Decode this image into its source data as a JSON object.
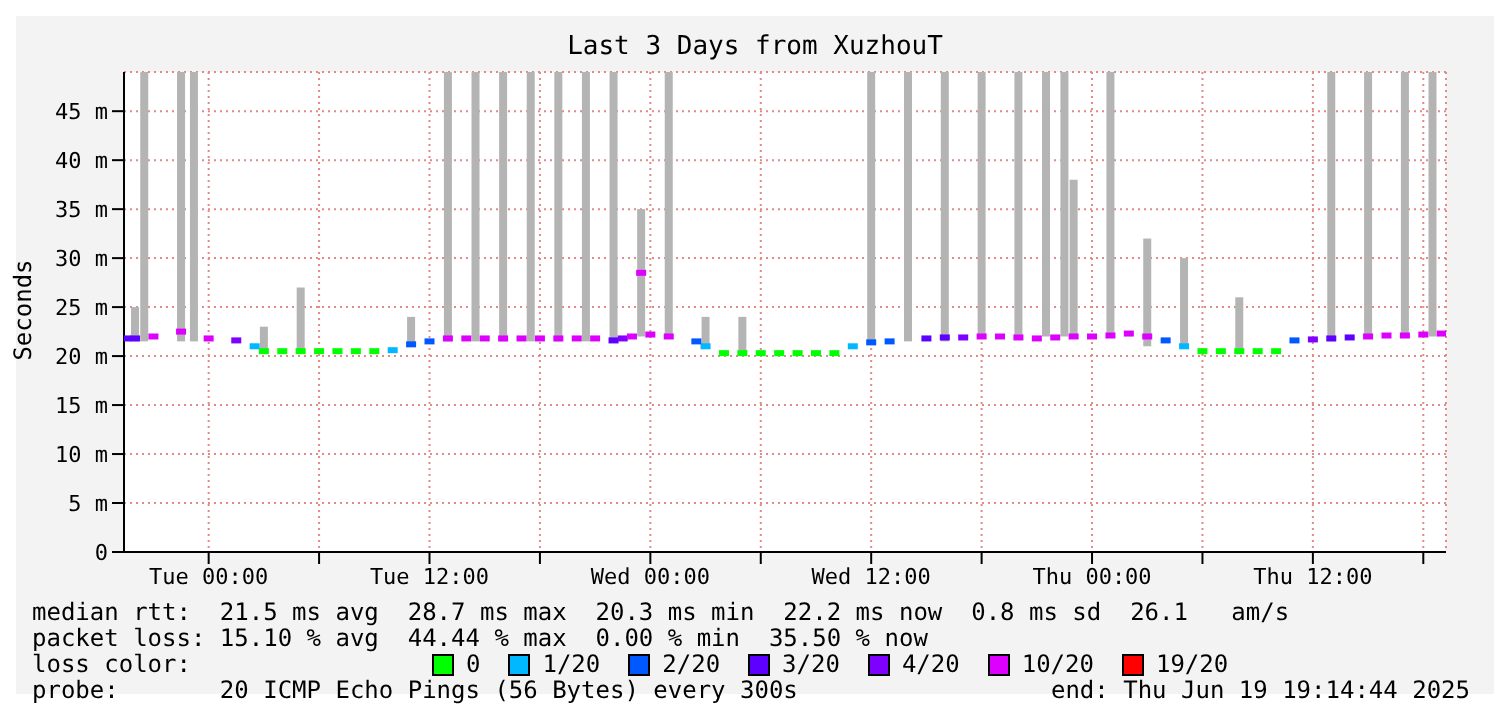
{
  "chart_data": {
    "type": "scatter",
    "title": "Last 3 Days from XuzhouT",
    "ylabel": "Seconds",
    "legend_title": "loss color:",
    "legend": "bottom",
    "marker": "square",
    "grid": true,
    "xlim": [
      "2025-06-16T19:24",
      "2025-06-19T19:14"
    ],
    "xticks": [
      {
        "value": "2025-06-17T00:00",
        "label": "Tue 00:00"
      },
      {
        "value": "2025-06-17T06:00",
        "label": null
      },
      {
        "value": "2025-06-17T12:00",
        "label": "Tue 12:00"
      },
      {
        "value": "2025-06-17T18:00",
        "label": null
      },
      {
        "value": "2025-06-18T00:00",
        "label": "Wed 00:00"
      },
      {
        "value": "2025-06-18T06:00",
        "label": null
      },
      {
        "value": "2025-06-18T12:00",
        "label": "Wed 12:00"
      },
      {
        "value": "2025-06-18T18:00",
        "label": null
      },
      {
        "value": "2025-06-19T00:00",
        "label": "Thu 00:00"
      },
      {
        "value": "2025-06-19T06:00",
        "label": null
      },
      {
        "value": "2025-06-19T12:00",
        "label": "Thu 12:00"
      },
      {
        "value": "2025-06-19T18:00",
        "label": null
      }
    ],
    "ylim": [
      0,
      49
    ],
    "yticks": [
      {
        "value": 0,
        "label": "0"
      },
      {
        "value": 5,
        "label": "5 m"
      },
      {
        "value": 10,
        "label": "10 m"
      },
      {
        "value": 15,
        "label": "15 m"
      },
      {
        "value": 20,
        "label": "20 m"
      },
      {
        "value": 25,
        "label": "25 m"
      },
      {
        "value": 30,
        "label": "30 m"
      },
      {
        "value": 35,
        "label": "35 m"
      },
      {
        "value": 40,
        "label": "40 m"
      },
      {
        "value": 45,
        "label": "45 m"
      }
    ],
    "series": [
      {
        "type": "bar",
        "color": "#b4b4b4",
        "x": [
          "2025-06-16T20:00",
          "2025-06-16T20:30",
          "2025-06-16T22:30",
          "2025-06-16T23:12",
          "2025-06-17T03:00",
          "2025-06-17T05:00",
          "2025-06-17T11:00",
          "2025-06-17T13:00",
          "2025-06-17T14:30",
          "2025-06-17T16:00",
          "2025-06-17T17:30",
          "2025-06-17T19:00",
          "2025-06-17T20:30",
          "2025-06-17T22:00",
          "2025-06-17T23:30",
          "2025-06-18T01:00",
          "2025-06-18T03:00",
          "2025-06-18T05:00",
          "2025-06-18T12:00",
          "2025-06-18T14:00",
          "2025-06-18T16:00",
          "2025-06-18T18:00",
          "2025-06-18T20:00",
          "2025-06-18T21:30",
          "2025-06-18T22:30",
          "2025-06-18T23:00",
          "2025-06-19T01:00",
          "2025-06-19T03:00",
          "2025-06-19T05:00",
          "2025-06-19T08:00",
          "2025-06-19T13:00",
          "2025-06-19T15:00",
          "2025-06-19T17:00",
          "2025-06-19T18:30"
        ],
        "base": [
          21.5,
          21.5,
          21.5,
          21.5,
          20.5,
          20.5,
          21,
          21.5,
          21.5,
          21.5,
          21.5,
          21.5,
          21.5,
          21.5,
          22,
          22,
          21,
          20.3,
          21.5,
          21.5,
          21.5,
          22,
          22,
          22,
          22,
          22,
          22,
          21,
          21,
          20.5,
          21.5,
          22,
          22,
          22
        ],
        "values": [
          3.5,
          27.5,
          27.5,
          27.5,
          2.5,
          6.5,
          3,
          27.5,
          27.5,
          27.5,
          27.5,
          27.5,
          27.5,
          27.5,
          13,
          27,
          3,
          3.7,
          27.5,
          27.5,
          27.5,
          27,
          27,
          27,
          27,
          16,
          27,
          11,
          9,
          5.5,
          27.5,
          27,
          27,
          27
        ]
      },
      {
        "name": "0",
        "color": "#00ff00",
        "x": [
          "2025-06-17T03:00",
          "2025-06-17T04:00",
          "2025-06-17T05:00",
          "2025-06-17T06:00",
          "2025-06-17T07:00",
          "2025-06-17T08:00",
          "2025-06-17T09:00",
          "2025-06-18T04:00",
          "2025-06-18T05:00",
          "2025-06-18T06:00",
          "2025-06-18T07:00",
          "2025-06-18T08:00",
          "2025-06-18T09:00",
          "2025-06-18T10:00",
          "2025-06-19T06:00",
          "2025-06-19T07:00",
          "2025-06-19T08:00",
          "2025-06-19T09:00",
          "2025-06-19T10:00"
        ],
        "values": [
          20.5,
          20.5,
          20.5,
          20.5,
          20.5,
          20.5,
          20.5,
          20.3,
          20.3,
          20.3,
          20.3,
          20.3,
          20.3,
          20.3,
          20.5,
          20.5,
          20.5,
          20.5,
          20.5
        ]
      },
      {
        "name": "1/20",
        "color": "#00b8ff",
        "x": [
          "2025-06-17T02:30",
          "2025-06-17T10:00",
          "2025-06-18T03:00",
          "2025-06-18T11:00",
          "2025-06-19T05:00"
        ],
        "values": [
          21,
          20.6,
          21,
          21,
          21
        ]
      },
      {
        "name": "2/20",
        "color": "#0059ff",
        "x": [
          "2025-06-17T11:00",
          "2025-06-17T12:00",
          "2025-06-18T02:30",
          "2025-06-18T12:00",
          "2025-06-18T13:00",
          "2025-06-19T04:00",
          "2025-06-19T11:00"
        ],
        "values": [
          21.2,
          21.5,
          21.5,
          21.4,
          21.5,
          21.6,
          21.6
        ]
      },
      {
        "name": "3/20",
        "color": "#5e00ff",
        "x": [
          "2025-06-16T19:30",
          "2025-06-16T20:00",
          "2025-06-17T22:00",
          "2025-06-18T15:00",
          "2025-06-18T16:00",
          "2025-06-19T13:00",
          "2025-06-19T14:00"
        ],
        "values": [
          21.8,
          21.8,
          21.6,
          21.8,
          21.9,
          21.8,
          21.9
        ]
      },
      {
        "name": "4/20",
        "color": "#7e00ff",
        "x": [
          "2025-06-17T01:30",
          "2025-06-17T22:30",
          "2025-06-18T17:00",
          "2025-06-19T12:00"
        ],
        "values": [
          21.6,
          21.8,
          21.9,
          21.7
        ]
      },
      {
        "name": "10/20",
        "color": "#dd00ff",
        "x": [
          "2025-06-16T21:00",
          "2025-06-16T22:30",
          "2025-06-17T00:00",
          "2025-06-17T13:00",
          "2025-06-17T14:00",
          "2025-06-17T15:00",
          "2025-06-17T16:00",
          "2025-06-17T17:00",
          "2025-06-17T18:00",
          "2025-06-17T19:00",
          "2025-06-17T20:00",
          "2025-06-17T21:00",
          "2025-06-17T23:00",
          "2025-06-17T23:30",
          "2025-06-18T00:00",
          "2025-06-18T01:00",
          "2025-06-18T18:00",
          "2025-06-18T19:00",
          "2025-06-18T20:00",
          "2025-06-18T21:00",
          "2025-06-18T22:00",
          "2025-06-18T23:00",
          "2025-06-19T00:00",
          "2025-06-19T01:00",
          "2025-06-19T02:00",
          "2025-06-19T03:00",
          "2025-06-19T15:00",
          "2025-06-19T16:00",
          "2025-06-19T17:00",
          "2025-06-19T18:00",
          "2025-06-19T19:00"
        ],
        "values": [
          22,
          22.5,
          21.8,
          21.8,
          21.8,
          21.8,
          21.8,
          21.8,
          21.8,
          21.8,
          21.8,
          21.8,
          22,
          28.5,
          22.2,
          22,
          22,
          22,
          21.9,
          21.8,
          21.9,
          22,
          22,
          22.1,
          22.3,
          22,
          22,
          22.1,
          22.1,
          22.2,
          22.3
        ]
      },
      {
        "name": "19/20",
        "color": "#ff0000"
      }
    ],
    "annotations": [
      "median rtt:  21.5 ms avg  28.7 ms max  20.3 ms min  22.2 ms now  0.8 ms sd  26.1   am/s",
      "packet loss: 15.10 % avg  44.44 % max  0.00 % min  35.50 % now",
      "probe:       20 ICMP Echo Pings (56 Bytes) every 300s",
      "end: Thu Jun 19 19:14:44 2025"
    ]
  }
}
